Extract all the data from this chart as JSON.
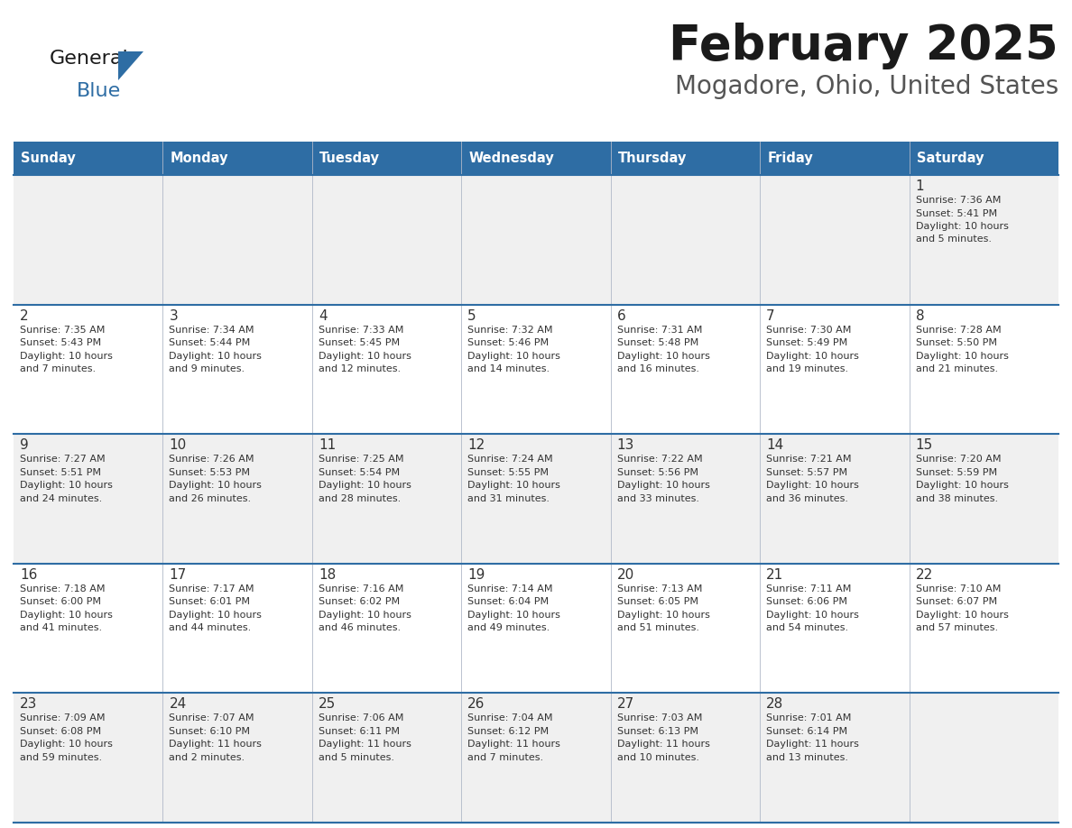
{
  "title": "February 2025",
  "subtitle": "Mogadore, Ohio, United States",
  "header_bg": "#2e6da4",
  "header_text_color": "#ffffff",
  "day_names": [
    "Sunday",
    "Monday",
    "Tuesday",
    "Wednesday",
    "Thursday",
    "Friday",
    "Saturday"
  ],
  "title_font_size": 38,
  "subtitle_font_size": 20,
  "odd_row_bg": "#f0f0f0",
  "even_row_bg": "#ffffff",
  "divider_color": "#2e6da4",
  "cell_text_color": "#333333",
  "logo_triangle_color": "#2e6da4",
  "logo_general_color": "#1a1a1a",
  "days": [
    {
      "day": 1,
      "col": 6,
      "row": 0,
      "sunrise": "7:36 AM",
      "sunset": "5:41 PM",
      "daylight": "10 hours and 5 minutes."
    },
    {
      "day": 2,
      "col": 0,
      "row": 1,
      "sunrise": "7:35 AM",
      "sunset": "5:43 PM",
      "daylight": "10 hours and 7 minutes."
    },
    {
      "day": 3,
      "col": 1,
      "row": 1,
      "sunrise": "7:34 AM",
      "sunset": "5:44 PM",
      "daylight": "10 hours and 9 minutes."
    },
    {
      "day": 4,
      "col": 2,
      "row": 1,
      "sunrise": "7:33 AM",
      "sunset": "5:45 PM",
      "daylight": "10 hours and 12 minutes."
    },
    {
      "day": 5,
      "col": 3,
      "row": 1,
      "sunrise": "7:32 AM",
      "sunset": "5:46 PM",
      "daylight": "10 hours and 14 minutes."
    },
    {
      "day": 6,
      "col": 4,
      "row": 1,
      "sunrise": "7:31 AM",
      "sunset": "5:48 PM",
      "daylight": "10 hours and 16 minutes."
    },
    {
      "day": 7,
      "col": 5,
      "row": 1,
      "sunrise": "7:30 AM",
      "sunset": "5:49 PM",
      "daylight": "10 hours and 19 minutes."
    },
    {
      "day": 8,
      "col": 6,
      "row": 1,
      "sunrise": "7:28 AM",
      "sunset": "5:50 PM",
      "daylight": "10 hours and 21 minutes."
    },
    {
      "day": 9,
      "col": 0,
      "row": 2,
      "sunrise": "7:27 AM",
      "sunset": "5:51 PM",
      "daylight": "10 hours and 24 minutes."
    },
    {
      "day": 10,
      "col": 1,
      "row": 2,
      "sunrise": "7:26 AM",
      "sunset": "5:53 PM",
      "daylight": "10 hours and 26 minutes."
    },
    {
      "day": 11,
      "col": 2,
      "row": 2,
      "sunrise": "7:25 AM",
      "sunset": "5:54 PM",
      "daylight": "10 hours and 28 minutes."
    },
    {
      "day": 12,
      "col": 3,
      "row": 2,
      "sunrise": "7:24 AM",
      "sunset": "5:55 PM",
      "daylight": "10 hours and 31 minutes."
    },
    {
      "day": 13,
      "col": 4,
      "row": 2,
      "sunrise": "7:22 AM",
      "sunset": "5:56 PM",
      "daylight": "10 hours and 33 minutes."
    },
    {
      "day": 14,
      "col": 5,
      "row": 2,
      "sunrise": "7:21 AM",
      "sunset": "5:57 PM",
      "daylight": "10 hours and 36 minutes."
    },
    {
      "day": 15,
      "col": 6,
      "row": 2,
      "sunrise": "7:20 AM",
      "sunset": "5:59 PM",
      "daylight": "10 hours and 38 minutes."
    },
    {
      "day": 16,
      "col": 0,
      "row": 3,
      "sunrise": "7:18 AM",
      "sunset": "6:00 PM",
      "daylight": "10 hours and 41 minutes."
    },
    {
      "day": 17,
      "col": 1,
      "row": 3,
      "sunrise": "7:17 AM",
      "sunset": "6:01 PM",
      "daylight": "10 hours and 44 minutes."
    },
    {
      "day": 18,
      "col": 2,
      "row": 3,
      "sunrise": "7:16 AM",
      "sunset": "6:02 PM",
      "daylight": "10 hours and 46 minutes."
    },
    {
      "day": 19,
      "col": 3,
      "row": 3,
      "sunrise": "7:14 AM",
      "sunset": "6:04 PM",
      "daylight": "10 hours and 49 minutes."
    },
    {
      "day": 20,
      "col": 4,
      "row": 3,
      "sunrise": "7:13 AM",
      "sunset": "6:05 PM",
      "daylight": "10 hours and 51 minutes."
    },
    {
      "day": 21,
      "col": 5,
      "row": 3,
      "sunrise": "7:11 AM",
      "sunset": "6:06 PM",
      "daylight": "10 hours and 54 minutes."
    },
    {
      "day": 22,
      "col": 6,
      "row": 3,
      "sunrise": "7:10 AM",
      "sunset": "6:07 PM",
      "daylight": "10 hours and 57 minutes."
    },
    {
      "day": 23,
      "col": 0,
      "row": 4,
      "sunrise": "7:09 AM",
      "sunset": "6:08 PM",
      "daylight": "10 hours and 59 minutes."
    },
    {
      "day": 24,
      "col": 1,
      "row": 4,
      "sunrise": "7:07 AM",
      "sunset": "6:10 PM",
      "daylight": "11 hours and 2 minutes."
    },
    {
      "day": 25,
      "col": 2,
      "row": 4,
      "sunrise": "7:06 AM",
      "sunset": "6:11 PM",
      "daylight": "11 hours and 5 minutes."
    },
    {
      "day": 26,
      "col": 3,
      "row": 4,
      "sunrise": "7:04 AM",
      "sunset": "6:12 PM",
      "daylight": "11 hours and 7 minutes."
    },
    {
      "day": 27,
      "col": 4,
      "row": 4,
      "sunrise": "7:03 AM",
      "sunset": "6:13 PM",
      "daylight": "11 hours and 10 minutes."
    },
    {
      "day": 28,
      "col": 5,
      "row": 4,
      "sunrise": "7:01 AM",
      "sunset": "6:14 PM",
      "daylight": "11 hours and 13 minutes."
    }
  ]
}
